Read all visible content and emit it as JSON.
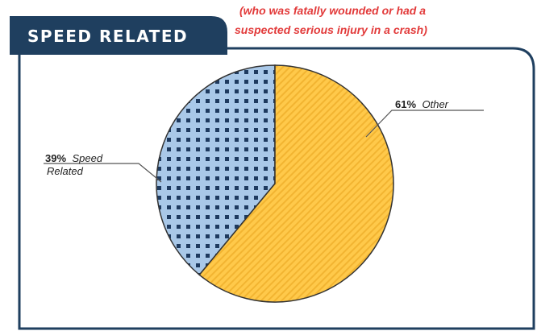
{
  "header": {
    "title": "SPEED RELATED",
    "subtitle_line1": "(who was fatally wounded or had a",
    "subtitle_line2": "suspected serious injury in a crash)"
  },
  "colors": {
    "header_bg": "#1f3f5f",
    "frame_border": "#1f3f5f",
    "subtitle_red": "#e23a3a",
    "speed_fill": "#a9c8e8",
    "speed_dots": "#1e3a5f",
    "other_fill": "#ffc94a",
    "other_stripe": "#f2b431"
  },
  "chart_data": {
    "type": "pie",
    "slices": [
      {
        "value": 39,
        "percent_label": "39%",
        "name_label_line1": "Speed",
        "name_label_line2": "Related",
        "pattern": "dots"
      },
      {
        "value": 61,
        "percent_label": "61%",
        "name_label_line1": "Other",
        "name_label_line2": "",
        "pattern": "stripes"
      }
    ]
  }
}
